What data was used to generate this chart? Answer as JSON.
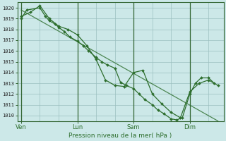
{
  "xlabel": "Pression niveau de la mer( hPa )",
  "background_color": "#cce8e8",
  "grid_color": "#9bbfbf",
  "line_color": "#2d6e2d",
  "ylim": [
    1009.5,
    1020.5
  ],
  "yticks": [
    1010,
    1011,
    1012,
    1013,
    1014,
    1015,
    1016,
    1017,
    1018,
    1019,
    1020
  ],
  "xtick_labels": [
    "Ven",
    "Lun",
    "Sam",
    "Dim"
  ],
  "xtick_pos": [
    0,
    30,
    60,
    90
  ],
  "xlim": [
    -2,
    108
  ],
  "line1_x": [
    0,
    3,
    10,
    13,
    15,
    18,
    20,
    23,
    26,
    30,
    33,
    36,
    40,
    43,
    46,
    50,
    53,
    56,
    60,
    63,
    66,
    70,
    73,
    76,
    80,
    83,
    86,
    90,
    93,
    96,
    100,
    103
  ],
  "line1_y": [
    1019.0,
    1019.8,
    1020.0,
    1019.2,
    1018.8,
    1018.5,
    1018.2,
    1017.8,
    1017.3,
    1016.9,
    1016.5,
    1016.0,
    1015.4,
    1015.0,
    1014.7,
    1014.4,
    1013.1,
    1012.8,
    1012.5,
    1012.0,
    1011.5,
    1011.0,
    1010.5,
    1010.2,
    1009.7,
    1009.6,
    1009.8,
    1012.0,
    1013.0,
    1013.5,
    1013.5,
    1013.0
  ],
  "line2_x": [
    0,
    5,
    10,
    15,
    20,
    25,
    30,
    35,
    40,
    45,
    50,
    55,
    60,
    65,
    70,
    75,
    80,
    85,
    90,
    95,
    100,
    105
  ],
  "line2_y": [
    1019.2,
    1019.6,
    1020.2,
    1019.0,
    1018.3,
    1018.0,
    1017.5,
    1016.5,
    1015.2,
    1013.3,
    1012.8,
    1012.7,
    1014.0,
    1014.2,
    1012.0,
    1011.1,
    1010.3,
    1009.8,
    1012.2,
    1013.0,
    1013.3,
    1012.8
  ],
  "line3_x": [
    0,
    105
  ],
  "line3_y": [
    1019.8,
    1009.5
  ],
  "vline_x": [
    0,
    30,
    60,
    90
  ],
  "figsize": [
    3.2,
    2.0
  ],
  "dpi": 100
}
